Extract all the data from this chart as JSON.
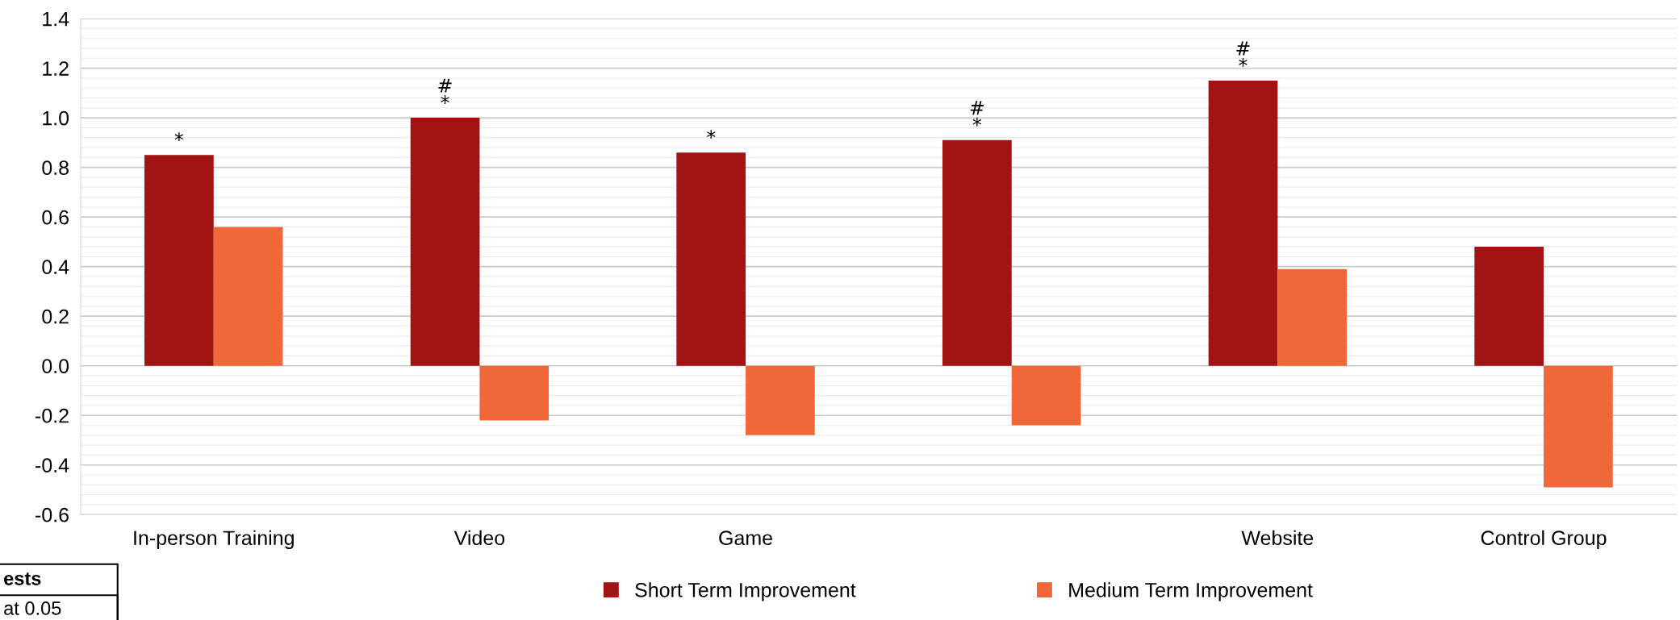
{
  "chart_data": {
    "type": "bar",
    "categories": [
      "In-person Training",
      "Video",
      "Game",
      null,
      "Website",
      "Control Group"
    ],
    "series": [
      {
        "name": "Short Term Improvement",
        "color": "#a21313",
        "values": [
          0.85,
          1.0,
          0.86,
          0.91,
          1.15,
          0.48
        ],
        "value_labels": [
          "*",
          "#\n*",
          "*",
          "#\n*",
          "#\n*",
          null
        ]
      },
      {
        "name": "Medium Term Improvement",
        "color": "#f0683a",
        "values": [
          0.56,
          -0.22,
          -0.28,
          -0.24,
          0.39,
          -0.49
        ]
      }
    ],
    "ylim": [
      -0.6,
      1.4
    ],
    "yticks": [
      {
        "value": -0.6,
        "label": "-0.6"
      },
      {
        "value": -0.4,
        "label": "-0.4"
      },
      {
        "value": -0.2,
        "label": "-0.2"
      },
      {
        "value": 0,
        "label": "0.0"
      },
      {
        "value": 0.2,
        "label": "0.2"
      },
      {
        "value": 0.4,
        "label": "0.4"
      },
      {
        "value": 0.6,
        "label": "0.6"
      },
      {
        "value": 0.8,
        "label": "0.8"
      },
      {
        "value": 1.0,
        "label": "1.0"
      },
      {
        "value": 1.2,
        "label": "1.2"
      },
      {
        "value": 1.4,
        "label": "1.4"
      }
    ],
    "grid": "y",
    "legend": "bottom",
    "annotations": [
      "ests",
      "at 0.05"
    ]
  }
}
